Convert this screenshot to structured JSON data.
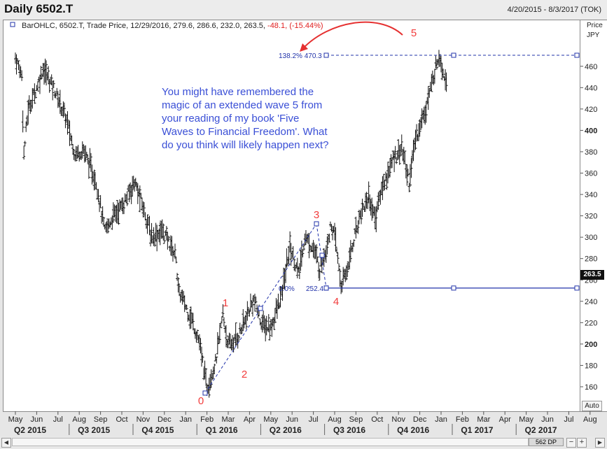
{
  "window": {
    "title": "Daily 6502.T",
    "date_range": "4/20/2015 - 8/3/2017 (TOK)"
  },
  "info_line": {
    "main": "BarOHLC, 6502.T, Trade Price, 12/29/2016, 279.6, 286.6, 232.0, 263.5,",
    "change": "-48.1, (-15.44%)"
  },
  "price_axis": {
    "label_line1": "Price",
    "label_line2": "JPY",
    "last_price": "263.5"
  },
  "controls": {
    "auto_label": "Auto",
    "scroll_label": "562 DP",
    "zoom_out": "−",
    "zoom_in": "+"
  },
  "colors": {
    "wave_label": "#f23c3c",
    "note_text": "#3a4fd6",
    "fib_line": "#2233aa",
    "bars": "#111111"
  },
  "annotation": "You might have remembered the magic of an extended wave 5 from your reading of my book 'Five Waves to Financial Freedom'. What do you think will likely happen next?",
  "chart_data": {
    "type": "ohlc",
    "ylim": [
      140,
      480
    ],
    "yticks": [
      160,
      180,
      200,
      220,
      240,
      260,
      280,
      300,
      320,
      340,
      360,
      380,
      400,
      420,
      440,
      460
    ],
    "months": [
      "May",
      "Jun",
      "Jul",
      "Aug",
      "Sep",
      "Oct",
      "Nov",
      "Dec",
      "Jan",
      "Feb",
      "Mar",
      "Apr",
      "May",
      "Jun",
      "Jul",
      "Aug",
      "Sep",
      "Oct",
      "Nov",
      "Dec",
      "Jan",
      "Feb",
      "Mar",
      "Apr",
      "May",
      "Jun",
      "Jul",
      "Aug"
    ],
    "quarters": [
      "Q2 2015",
      "Q3 2015",
      "Q4 2015",
      "Q1 2016",
      "Q2 2016",
      "Q3 2016",
      "Q4 2016",
      "Q1 2017",
      "Q2 2017"
    ],
    "bold_ticks": [
      200,
      400
    ],
    "fibonacci": [
      {
        "label": "138.2%",
        "value": 470.3
      },
      {
        "label": "0.0%",
        "value": 252.4
      }
    ],
    "wave_labels": [
      "0",
      "1",
      "2",
      "3",
      "4",
      "5"
    ],
    "path_points": [
      {
        "m": 0.0,
        "v": 468
      },
      {
        "m": 0.3,
        "v": 452
      },
      {
        "m": 0.4,
        "v": 378
      },
      {
        "m": 0.6,
        "v": 420
      },
      {
        "m": 1.0,
        "v": 440
      },
      {
        "m": 1.3,
        "v": 458
      },
      {
        "m": 1.8,
        "v": 440
      },
      {
        "m": 2.4,
        "v": 410
      },
      {
        "m": 2.8,
        "v": 378
      },
      {
        "m": 3.2,
        "v": 382
      },
      {
        "m": 3.8,
        "v": 352
      },
      {
        "m": 4.2,
        "v": 305
      },
      {
        "m": 4.6,
        "v": 320
      },
      {
        "m": 5.1,
        "v": 332
      },
      {
        "m": 5.6,
        "v": 352
      },
      {
        "m": 6.1,
        "v": 322
      },
      {
        "m": 6.4,
        "v": 300
      },
      {
        "m": 6.9,
        "v": 306
      },
      {
        "m": 7.2,
        "v": 296
      },
      {
        "m": 7.55,
        "v": 282
      },
      {
        "m": 7.65,
        "v": 250
      },
      {
        "m": 7.9,
        "v": 240
      },
      {
        "m": 8.3,
        "v": 222
      },
      {
        "m": 8.6,
        "v": 205
      },
      {
        "m": 9.0,
        "v": 160
      },
      {
        "m": 9.4,
        "v": 182
      },
      {
        "m": 9.75,
        "v": 228
      },
      {
        "m": 10.0,
        "v": 198
      },
      {
        "m": 10.4,
        "v": 205
      },
      {
        "m": 10.8,
        "v": 222
      },
      {
        "m": 11.2,
        "v": 242
      },
      {
        "m": 11.6,
        "v": 218
      },
      {
        "m": 12.0,
        "v": 215
      },
      {
        "m": 12.5,
        "v": 245
      },
      {
        "m": 12.9,
        "v": 292
      },
      {
        "m": 13.3,
        "v": 265
      },
      {
        "m": 13.6,
        "v": 300
      },
      {
        "m": 14.0,
        "v": 290
      },
      {
        "m": 14.3,
        "v": 270
      },
      {
        "m": 14.6,
        "v": 290
      },
      {
        "m": 14.85,
        "v": 312
      },
      {
        "m": 15.05,
        "v": 295
      },
      {
        "m": 15.3,
        "v": 255
      },
      {
        "m": 15.5,
        "v": 263
      },
      {
        "m": 15.9,
        "v": 298
      },
      {
        "m": 16.2,
        "v": 322
      },
      {
        "m": 16.6,
        "v": 338
      },
      {
        "m": 16.9,
        "v": 318
      },
      {
        "m": 17.2,
        "v": 345
      },
      {
        "m": 17.5,
        "v": 360
      },
      {
        "m": 17.8,
        "v": 375
      },
      {
        "m": 18.15,
        "v": 384
      },
      {
        "m": 18.5,
        "v": 352
      },
      {
        "m": 18.8,
        "v": 392
      },
      {
        "m": 19.1,
        "v": 410
      },
      {
        "m": 19.4,
        "v": 430
      },
      {
        "m": 19.7,
        "v": 455
      },
      {
        "m": 19.9,
        "v": 472
      },
      {
        "m": 20.15,
        "v": 452
      },
      {
        "m": 20.3,
        "v": 445
      }
    ]
  }
}
